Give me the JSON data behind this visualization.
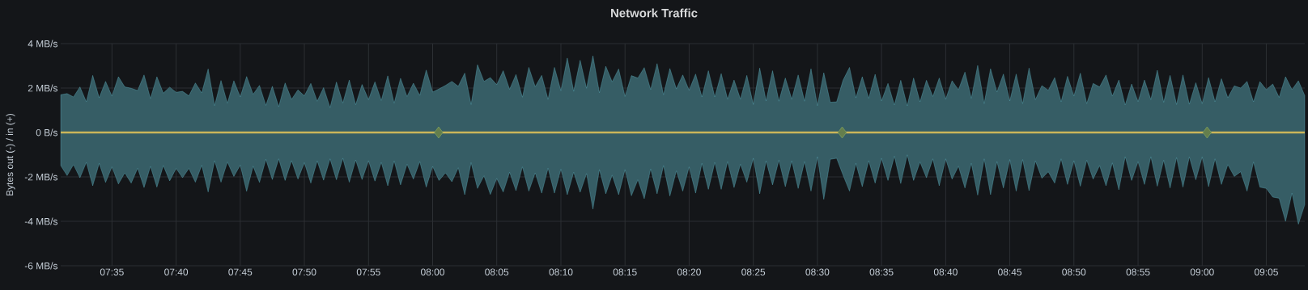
{
  "chart_data": {
    "type": "area",
    "title": "Network Traffic",
    "ylabel": "Bytes out (-) / in (+)",
    "x": [
      7.5167,
      7.525,
      7.5333,
      7.5417,
      7.55,
      7.5583,
      7.5667,
      7.575,
      7.5833,
      7.5917,
      7.6,
      7.6083,
      7.6167,
      7.625,
      7.6333,
      7.6417,
      7.65,
      7.6583,
      7.6667,
      7.675,
      7.6833,
      7.6917,
      7.7,
      7.7083,
      7.7167,
      7.725,
      7.7333,
      7.7417,
      7.75,
      7.7583,
      7.7667,
      7.775,
      7.7833,
      7.7917,
      7.8,
      7.8083,
      7.8167,
      7.825,
      7.8333,
      7.8417,
      7.85,
      7.8583,
      7.8667,
      7.875,
      7.8833,
      7.8917,
      7.9,
      7.9083,
      7.9167,
      7.925,
      7.9333,
      7.9417,
      7.95,
      7.9583,
      7.9667,
      7.975,
      7.9833,
      7.9917,
      8.0,
      8.0083,
      8.0167,
      8.025,
      8.0333,
      8.0417,
      8.05,
      8.0583,
      8.0667,
      8.075,
      8.0833,
      8.0917,
      8.1,
      8.1083,
      8.1167,
      8.125,
      8.1333,
      8.1417,
      8.15,
      8.1583,
      8.1667,
      8.175,
      8.1833,
      8.1917,
      8.2,
      8.2083,
      8.2167,
      8.225,
      8.2333,
      8.2417,
      8.25,
      8.2583,
      8.2667,
      8.275,
      8.2833,
      8.2917,
      8.3,
      8.3083,
      8.3167,
      8.325,
      8.3333,
      8.3417,
      8.35,
      8.3583,
      8.3667,
      8.375,
      8.3833,
      8.3917,
      8.4,
      8.4083,
      8.4167,
      8.425,
      8.4333,
      8.4417,
      8.45,
      8.4583,
      8.4667,
      8.475,
      8.4833,
      8.4917,
      8.5,
      8.5083,
      8.5167,
      8.525,
      8.5333,
      8.5417,
      8.55,
      8.5583,
      8.5667,
      8.575,
      8.5833,
      8.5917,
      8.6,
      8.6083,
      8.6167,
      8.625,
      8.6333,
      8.6417,
      8.65,
      8.6583,
      8.6667,
      8.675,
      8.6833,
      8.6917,
      8.7,
      8.7083,
      8.7167,
      8.725,
      8.7333,
      8.7417,
      8.75,
      8.7583,
      8.7667,
      8.775,
      8.7833,
      8.7917,
      8.8,
      8.8083,
      8.8167,
      8.825,
      8.8333,
      8.8417,
      8.85,
      8.8583,
      8.8667,
      8.875,
      8.8833,
      8.8917,
      8.9,
      8.9083,
      8.9167,
      8.925,
      8.9333,
      8.9417,
      8.95,
      8.9583,
      8.9667,
      8.975,
      8.9833,
      8.9917,
      9.0,
      9.0083,
      9.0167,
      9.025,
      9.0333,
      9.0417,
      9.05,
      9.0583,
      9.0667,
      9.075,
      9.0833,
      9.0917,
      9.1,
      9.1083,
      9.1167,
      9.125,
      9.1333
    ],
    "xlim": [
      7.5167,
      9.1333
    ],
    "xticks": [
      {
        "value": 7.5833,
        "label": "07:35"
      },
      {
        "value": 7.6667,
        "label": "07:40"
      },
      {
        "value": 7.75,
        "label": "07:45"
      },
      {
        "value": 7.8333,
        "label": "07:50"
      },
      {
        "value": 7.9167,
        "label": "07:55"
      },
      {
        "value": 8.0,
        "label": "08:00"
      },
      {
        "value": 8.0833,
        "label": "08:05"
      },
      {
        "value": 8.1667,
        "label": "08:10"
      },
      {
        "value": 8.25,
        "label": "08:15"
      },
      {
        "value": 8.3333,
        "label": "08:20"
      },
      {
        "value": 8.4167,
        "label": "08:25"
      },
      {
        "value": 8.5,
        "label": "08:30"
      },
      {
        "value": 8.5833,
        "label": "08:35"
      },
      {
        "value": 8.6667,
        "label": "08:40"
      },
      {
        "value": 8.75,
        "label": "08:45"
      },
      {
        "value": 8.8333,
        "label": "08:50"
      },
      {
        "value": 8.9167,
        "label": "08:55"
      },
      {
        "value": 9.0,
        "label": "09:00"
      },
      {
        "value": 9.0833,
        "label": "09:05"
      }
    ],
    "ylim": [
      -6,
      4
    ],
    "yticks": [
      {
        "value": 4,
        "label": "4 MB/s"
      },
      {
        "value": 2,
        "label": "2 MB/s"
      },
      {
        "value": 0,
        "label": "0 B/s"
      },
      {
        "value": -2,
        "label": "-2 MB/s"
      },
      {
        "value": -4,
        "label": "-4 MB/s"
      },
      {
        "value": -6,
        "label": "-6 MB/s"
      }
    ],
    "grid": true,
    "series": [
      {
        "color": "#6ed0e0",
        "values": [
          1.7,
          1.75,
          1.6,
          2.05,
          1.38,
          2.57,
          1.56,
          2.3,
          1.64,
          2.51,
          2.05,
          1.99,
          1.89,
          2.59,
          1.53,
          2.51,
          1.77,
          2.04,
          1.81,
          1.85,
          1.65,
          2.23,
          1.78,
          2.86,
          1.21,
          2.34,
          1.32,
          2.33,
          1.6,
          2.52,
          1.72,
          2.12,
          1.22,
          2.08,
          1.16,
          2.23,
          1.49,
          1.92,
          1.65,
          2.21,
          1.41,
          2.02,
          1.12,
          2.27,
          1.33,
          2.36,
          1.25,
          2.16,
          1.48,
          2.28,
          1.44,
          2.55,
          1.32,
          2.44,
          1.62,
          2.22,
          1.67,
          2.81,
          1.82,
          1.96,
          2.12,
          2.3,
          2.08,
          2.67,
          1.26,
          3.05,
          2.3,
          2.47,
          2.15,
          2.78,
          1.94,
          2.61,
          1.59,
          2.93,
          2.06,
          2.57,
          1.49,
          2.93,
          1.88,
          3.35,
          1.85,
          3.25,
          1.99,
          3.45,
          1.79,
          2.98,
          2.28,
          2.86,
          1.62,
          2.56,
          2.45,
          2.92,
          1.93,
          3.1,
          1.7,
          2.88,
          1.96,
          2.59,
          1.9,
          2.63,
          1.6,
          2.78,
          1.6,
          2.65,
          1.5,
          2.36,
          1.5,
          2.57,
          1.26,
          2.9,
          1.42,
          2.78,
          1.41,
          2.45,
          1.5,
          2.59,
          1.41,
          2.87,
          1.21,
          2.69,
          1.36,
          1.38,
          2.35,
          2.93,
          1.56,
          2.51,
          1.54,
          2.62,
          1.42,
          2.21,
          1.24,
          2.35,
          1.2,
          2.45,
          1.38,
          2.35,
          1.62,
          2.45,
          1.5,
          2.33,
          1.92,
          2.72,
          1.54,
          3.02,
          1.3,
          2.87,
          1.82,
          2.63,
          1.42,
          2.63,
          1.3,
          2.9,
          1.48,
          2.11,
          1.9,
          2.47,
          1.38,
          2.53,
          1.64,
          2.67,
          1.3,
          2.21,
          2.05,
          2.59,
          1.64,
          2.36,
          1.24,
          2.18,
          1.39,
          2.36,
          1.48,
          2.8,
          1.36,
          2.57,
          1.26,
          2.59,
          1.27,
          2.24,
          1.3,
          2.47,
          1.38,
          2.42,
          1.56,
          2.1,
          2.0,
          2.3,
          1.38,
          2.29,
          1.93,
          2.18,
          1.58,
          2.51,
          1.93,
          2.33,
          1.66
        ]
      },
      {
        "color": "#6ed0e0",
        "values": [
          -1.49,
          -1.94,
          -1.45,
          -2.04,
          -1.35,
          -2.4,
          -1.39,
          -2.25,
          -1.55,
          -2.32,
          -1.82,
          -2.28,
          -1.61,
          -2.48,
          -1.53,
          -2.46,
          -1.49,
          -2.18,
          -1.62,
          -2.04,
          -1.62,
          -2.24,
          -1.48,
          -2.68,
          -1.27,
          -2.24,
          -1.33,
          -1.98,
          -1.47,
          -2.65,
          -1.52,
          -2.25,
          -1.21,
          -2.12,
          -1.19,
          -2.16,
          -1.27,
          -2.1,
          -1.36,
          -2.28,
          -1.28,
          -2.15,
          -1.19,
          -2.13,
          -1.16,
          -2.24,
          -1.24,
          -2.12,
          -1.27,
          -2.19,
          -1.35,
          -2.4,
          -1.28,
          -2.36,
          -1.43,
          -2.1,
          -1.31,
          -2.46,
          -1.53,
          -2.16,
          -1.82,
          -2.22,
          -1.59,
          -2.8,
          -1.36,
          -2.52,
          -1.95,
          -2.79,
          -2.07,
          -2.68,
          -1.79,
          -2.62,
          -1.55,
          -2.64,
          -1.82,
          -2.73,
          -1.61,
          -2.73,
          -1.65,
          -2.8,
          -1.79,
          -2.69,
          -1.85,
          -3.45,
          -1.67,
          -2.76,
          -1.92,
          -2.8,
          -1.67,
          -2.85,
          -2.13,
          -2.98,
          -1.64,
          -2.76,
          -1.49,
          -2.86,
          -1.73,
          -2.64,
          -1.55,
          -2.73,
          -1.39,
          -2.56,
          -1.35,
          -2.56,
          -1.31,
          -2.48,
          -1.43,
          -2.24,
          -1.16,
          -2.76,
          -1.28,
          -2.36,
          -1.25,
          -2.44,
          -1.28,
          -2.52,
          -1.31,
          -2.64,
          -1.09,
          -3.01,
          -1.21,
          -1.16,
          -1.92,
          -2.64,
          -1.39,
          -2.44,
          -1.27,
          -2.28,
          -1.16,
          -2.16,
          -1.07,
          -2.3,
          -1.01,
          -2.16,
          -1.33,
          -2.04,
          -1.19,
          -2.4,
          -1.19,
          -2.1,
          -1.52,
          -2.5,
          -1.39,
          -2.82,
          -1.19,
          -2.8,
          -1.31,
          -2.5,
          -1.22,
          -2.64,
          -1.22,
          -2.62,
          -1.28,
          -2.06,
          -1.77,
          -2.28,
          -1.19,
          -2.34,
          -1.27,
          -2.42,
          -1.25,
          -2.1,
          -1.49,
          -2.4,
          -1.37,
          -2.58,
          -1.09,
          -2.16,
          -1.31,
          -2.34,
          -1.09,
          -2.42,
          -1.25,
          -2.5,
          -1.13,
          -2.46,
          -1.1,
          -2.13,
          -1.1,
          -2.44,
          -1.19,
          -2.34,
          -1.45,
          -1.98,
          -1.77,
          -2.64,
          -1.33,
          -2.46,
          -2.52,
          -2.91,
          -2.96,
          -4.0,
          -2.73,
          -4.13,
          -3.25
        ]
      },
      {
        "type": "line",
        "color": "#cbb65a",
        "x": [
          7.5167,
          9.1333
        ],
        "values": [
          0,
          0
        ]
      },
      {
        "type": "scatter",
        "marker": "diamond",
        "color": "#7ea05e",
        "x": [
          8.0078,
          8.5322,
          9.0064
        ],
        "values": [
          0,
          0,
          0
        ]
      }
    ]
  }
}
